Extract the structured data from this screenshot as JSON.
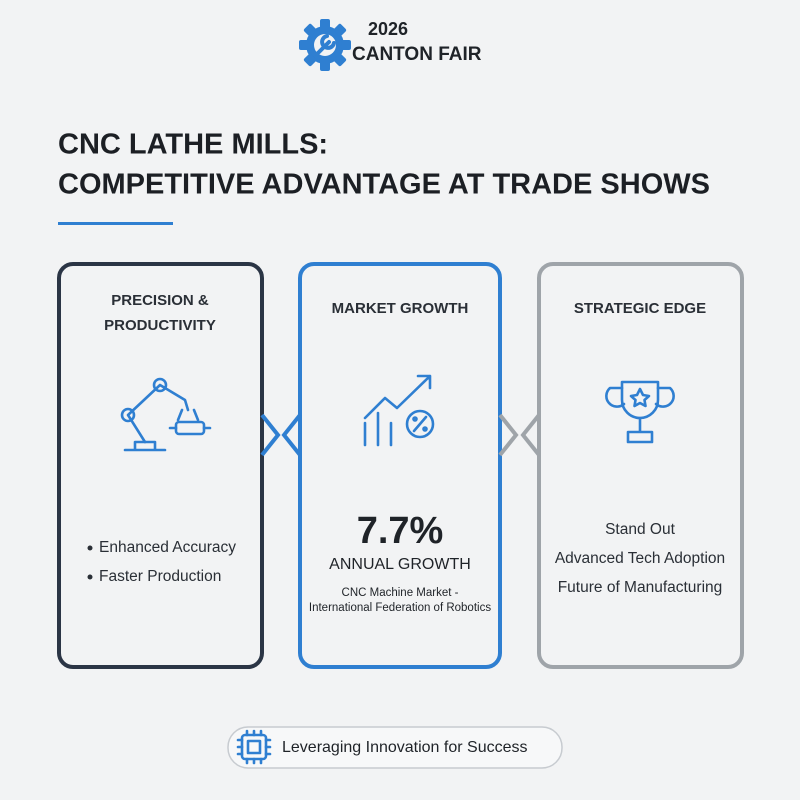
{
  "header": {
    "year": "2026",
    "event": "CANTON FAIR"
  },
  "title": {
    "lines": [
      "CNC LATHE MILLS:",
      "COMPETITIVE ADVANTAGE AT TRADE SHOWS"
    ]
  },
  "cards": [
    {
      "title": [
        "PRECISION &",
        "PRODUCTIVITY"
      ],
      "items": [
        "Enhanced Accuracy",
        "Faster Production"
      ]
    },
    {
      "title": [
        "MARKET GROWTH"
      ],
      "stat": "7.7%",
      "stat_label": "ANNUAL GROWTH",
      "source": [
        "CNC Machine Market -",
        "International Federation of Robotics"
      ]
    },
    {
      "title": [
        "STRATEGIC EDGE"
      ],
      "items": [
        "Stand Out",
        "Advanced Tech Adoption",
        "Future of Manufacturing"
      ]
    }
  ],
  "footer": {
    "text": "Leveraging Innovation for Success"
  }
}
